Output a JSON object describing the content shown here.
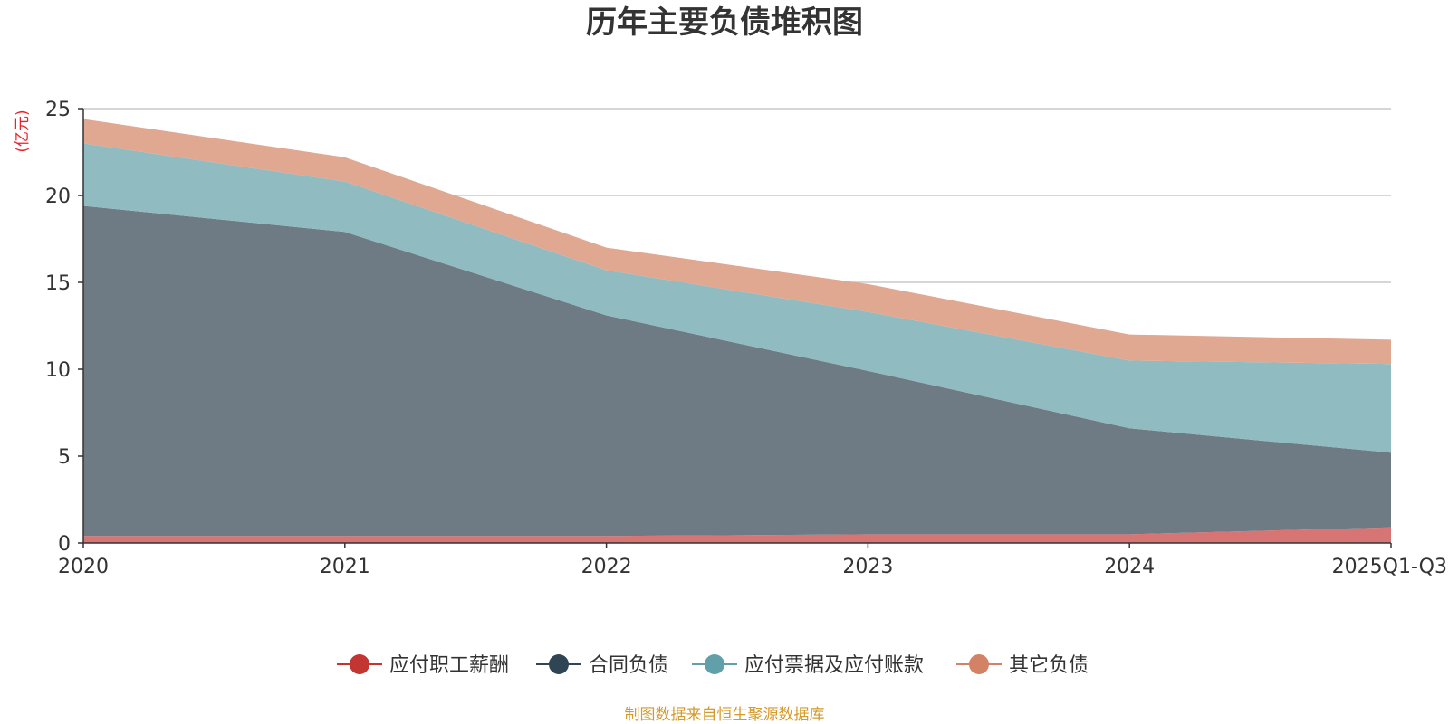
{
  "chart_data": {
    "type": "area",
    "stacked": true,
    "title": "历年主要负债堆积图",
    "unit_label": "亿元",
    "x": [
      "2020",
      "2021",
      "2022",
      "2023",
      "2024",
      "2025Q1-Q3"
    ],
    "ylim": [
      0,
      25
    ],
    "yticks": [
      0,
      5,
      10,
      15,
      20,
      25
    ],
    "grid": true,
    "legend_position": "bottom",
    "series": [
      {
        "name": "应付职工薪酬",
        "color": "#c23531",
        "fill": "#d77574",
        "values": [
          0.4,
          0.4,
          0.4,
          0.5,
          0.5,
          0.9
        ]
      },
      {
        "name": "合同负债",
        "color": "#2f4554",
        "fill": "#6e7b85",
        "values": [
          19.0,
          17.5,
          12.7,
          9.4,
          6.1,
          4.3
        ]
      },
      {
        "name": "应付票据及应付账款",
        "color": "#61a0a8",
        "fill": "#90bbc1",
        "values": [
          3.6,
          2.9,
          2.6,
          3.4,
          3.9,
          5.1
        ]
      },
      {
        "name": "其它负债",
        "color": "#d48265",
        "fill": "#e0a791",
        "values": [
          1.4,
          1.4,
          1.3,
          1.6,
          1.5,
          1.4
        ]
      }
    ]
  },
  "source_text": "制图数据来自恒生聚源数据库"
}
